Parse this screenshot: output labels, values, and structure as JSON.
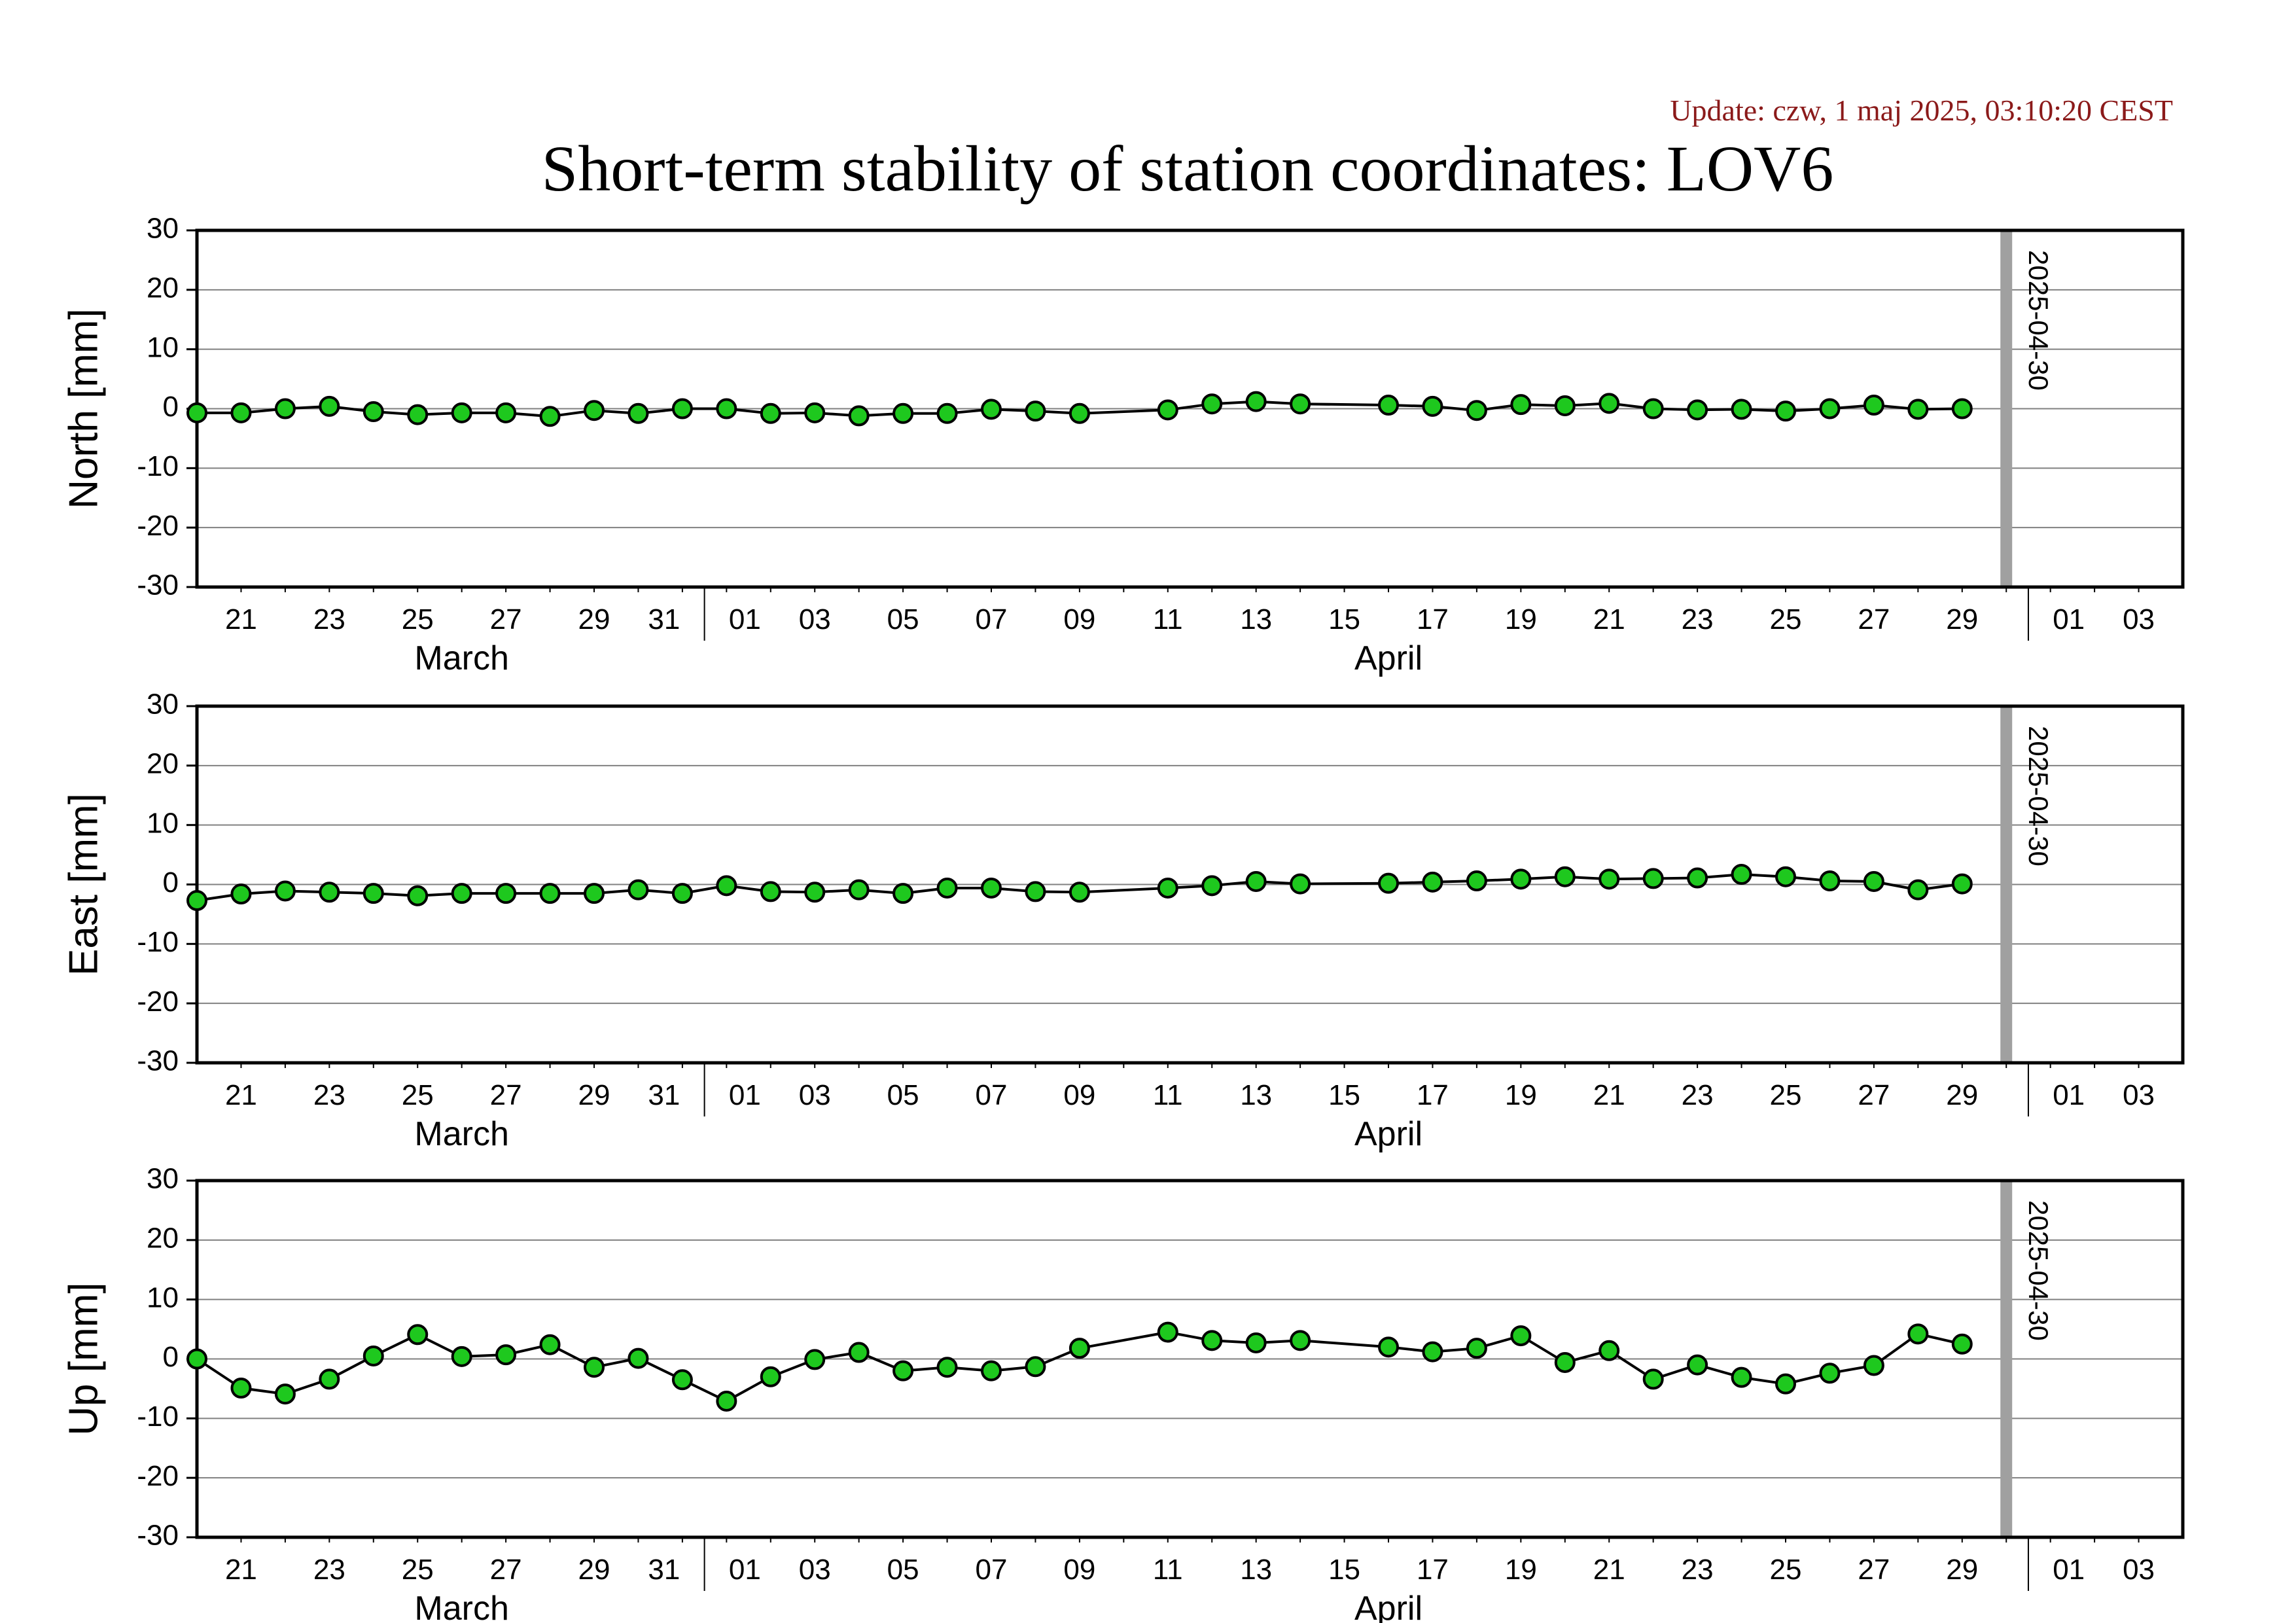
{
  "header": {
    "update": "Update: czw, 1 maj 2025, 03:10:20 CEST",
    "title": "Short-term stability of station coordinates: LOV6"
  },
  "colors": {
    "marker_fill": "#1ec81e",
    "marker_stroke": "#000000",
    "line": "#000000",
    "grid": "#808080",
    "current_date_bar": "#a0a0a0",
    "update_text": "#8b1a1a"
  },
  "chart_data": [
    {
      "type": "line",
      "ylabel": "North [mm]",
      "ylim": [
        -30,
        30
      ],
      "yticks": [
        30,
        20,
        10,
        0,
        -10,
        -20,
        -30
      ],
      "xlim": [
        "2025-03-20",
        "2025-05-04"
      ],
      "current_date": "2025-04-30",
      "grid": true,
      "month_labels": [
        {
          "date": "2025-03-26",
          "label": "March"
        },
        {
          "date": "2025-04-16",
          "label": "April"
        }
      ],
      "series": [
        {
          "x": [
            "2025-03-20",
            "2025-03-21",
            "2025-03-22",
            "2025-03-23",
            "2025-03-24",
            "2025-03-25",
            "2025-03-26",
            "2025-03-27",
            "2025-03-28",
            "2025-03-29",
            "2025-03-30",
            "2025-03-31",
            "2025-04-01",
            "2025-04-02",
            "2025-04-03",
            "2025-04-04",
            "2025-04-05",
            "2025-04-06",
            "2025-04-07",
            "2025-04-08",
            "2025-04-09",
            "2025-04-11",
            "2025-04-12",
            "2025-04-13",
            "2025-04-14",
            "2025-04-16",
            "2025-04-17",
            "2025-04-18",
            "2025-04-19",
            "2025-04-20",
            "2025-04-21",
            "2025-04-22",
            "2025-04-23",
            "2025-04-24",
            "2025-04-25",
            "2025-04-26",
            "2025-04-27",
            "2025-04-28",
            "2025-04-29"
          ],
          "values": [
            -0.7,
            -0.7,
            0,
            0.4,
            -0.5,
            -1,
            -0.7,
            -0.7,
            -1.3,
            -0.3,
            -0.8,
            0,
            0,
            -0.8,
            -0.7,
            -1.2,
            -0.8,
            -0.8,
            -0.1,
            -0.4,
            -0.8,
            -0.2,
            0.8,
            1.2,
            0.8,
            0.6,
            0.4,
            -0.3,
            0.7,
            0.5,
            0.9,
            0,
            -0.2,
            -0.1,
            -0.4,
            0,
            0.6,
            -0.1,
            0
          ]
        }
      ]
    },
    {
      "type": "line",
      "ylabel": "East [mm]",
      "ylim": [
        -30,
        30
      ],
      "yticks": [
        30,
        20,
        10,
        0,
        -10,
        -20,
        -30
      ],
      "xlim": [
        "2025-03-20",
        "2025-05-04"
      ],
      "current_date": "2025-04-30",
      "grid": true,
      "month_labels": [
        {
          "date": "2025-03-26",
          "label": "March"
        },
        {
          "date": "2025-04-16",
          "label": "April"
        }
      ],
      "series": [
        {
          "x": [
            "2025-03-20",
            "2025-03-21",
            "2025-03-22",
            "2025-03-23",
            "2025-03-24",
            "2025-03-25",
            "2025-03-26",
            "2025-03-27",
            "2025-03-28",
            "2025-03-29",
            "2025-03-30",
            "2025-03-31",
            "2025-04-01",
            "2025-04-02",
            "2025-04-03",
            "2025-04-04",
            "2025-04-05",
            "2025-04-06",
            "2025-04-07",
            "2025-04-08",
            "2025-04-09",
            "2025-04-11",
            "2025-04-12",
            "2025-04-13",
            "2025-04-14",
            "2025-04-16",
            "2025-04-17",
            "2025-04-18",
            "2025-04-19",
            "2025-04-20",
            "2025-04-21",
            "2025-04-22",
            "2025-04-23",
            "2025-04-24",
            "2025-04-25",
            "2025-04-26",
            "2025-04-27",
            "2025-04-28",
            "2025-04-29"
          ],
          "values": [
            -2.7,
            -1.6,
            -1.1,
            -1.3,
            -1.5,
            -1.9,
            -1.5,
            -1.5,
            -1.5,
            -1.5,
            -0.9,
            -1.5,
            -0.2,
            -1.2,
            -1.3,
            -0.9,
            -1.5,
            -0.6,
            -0.6,
            -1.2,
            -1.3,
            -0.6,
            -0.2,
            0.5,
            0.1,
            0.2,
            0.4,
            0.6,
            0.9,
            1.3,
            0.9,
            1,
            1.1,
            1.7,
            1.3,
            0.6,
            0.5,
            -0.9,
            0.1
          ]
        }
      ]
    },
    {
      "type": "line",
      "ylabel": "Up [mm]",
      "ylim": [
        -30,
        30
      ],
      "yticks": [
        30,
        20,
        10,
        0,
        -10,
        -20,
        -30
      ],
      "xlim": [
        "2025-03-20",
        "2025-05-04"
      ],
      "current_date": "2025-04-30",
      "grid": true,
      "month_labels": [
        {
          "date": "2025-03-26",
          "label": "March"
        },
        {
          "date": "2025-04-16",
          "label": "April"
        }
      ],
      "series": [
        {
          "x": [
            "2025-03-20",
            "2025-03-21",
            "2025-03-22",
            "2025-03-23",
            "2025-03-24",
            "2025-03-25",
            "2025-03-26",
            "2025-03-27",
            "2025-03-28",
            "2025-03-29",
            "2025-03-30",
            "2025-03-31",
            "2025-04-01",
            "2025-04-02",
            "2025-04-03",
            "2025-04-04",
            "2025-04-05",
            "2025-04-06",
            "2025-04-07",
            "2025-04-08",
            "2025-04-09",
            "2025-04-11",
            "2025-04-12",
            "2025-04-13",
            "2025-04-14",
            "2025-04-16",
            "2025-04-17",
            "2025-04-18",
            "2025-04-19",
            "2025-04-20",
            "2025-04-21",
            "2025-04-22",
            "2025-04-23",
            "2025-04-24",
            "2025-04-25",
            "2025-04-26",
            "2025-04-27",
            "2025-04-28",
            "2025-04-29"
          ],
          "values": [
            0,
            -4.9,
            -5.9,
            -3.4,
            0.5,
            4.1,
            0.4,
            0.7,
            2.4,
            -1.4,
            0.1,
            -3.5,
            -7.1,
            -3,
            -0.1,
            1.1,
            -2,
            -1.4,
            -2,
            -1.3,
            1.8,
            4.5,
            3.1,
            2.7,
            3.1,
            2,
            1.2,
            1.8,
            3.9,
            -0.6,
            1.4,
            -3.4,
            -1,
            -3.1,
            -4.2,
            -2.4,
            -1.1,
            4.2,
            2.5
          ]
        }
      ]
    }
  ],
  "x_tick_labels": [
    {
      "date": "2025-03-21",
      "label": "21"
    },
    {
      "date": "2025-03-23",
      "label": "23"
    },
    {
      "date": "2025-03-25",
      "label": "25"
    },
    {
      "date": "2025-03-27",
      "label": "27"
    },
    {
      "date": "2025-03-29",
      "label": "29"
    },
    {
      "date": "2025-03-31",
      "label": "31"
    },
    {
      "date": "2025-04-01",
      "label": "01"
    },
    {
      "date": "2025-04-03",
      "label": "03"
    },
    {
      "date": "2025-04-05",
      "label": "05"
    },
    {
      "date": "2025-04-07",
      "label": "07"
    },
    {
      "date": "2025-04-09",
      "label": "09"
    },
    {
      "date": "2025-04-11",
      "label": "11"
    },
    {
      "date": "2025-04-13",
      "label": "13"
    },
    {
      "date": "2025-04-15",
      "label": "15"
    },
    {
      "date": "2025-04-17",
      "label": "17"
    },
    {
      "date": "2025-04-19",
      "label": "19"
    },
    {
      "date": "2025-04-21",
      "label": "21"
    },
    {
      "date": "2025-04-23",
      "label": "23"
    },
    {
      "date": "2025-04-25",
      "label": "25"
    },
    {
      "date": "2025-04-27",
      "label": "27"
    },
    {
      "date": "2025-04-29",
      "label": "29"
    },
    {
      "date": "2025-05-01",
      "label": "01"
    },
    {
      "date": "2025-05-03",
      "label": "03"
    }
  ],
  "month_boundaries": [
    "2025-04-01",
    "2025-05-01"
  ]
}
